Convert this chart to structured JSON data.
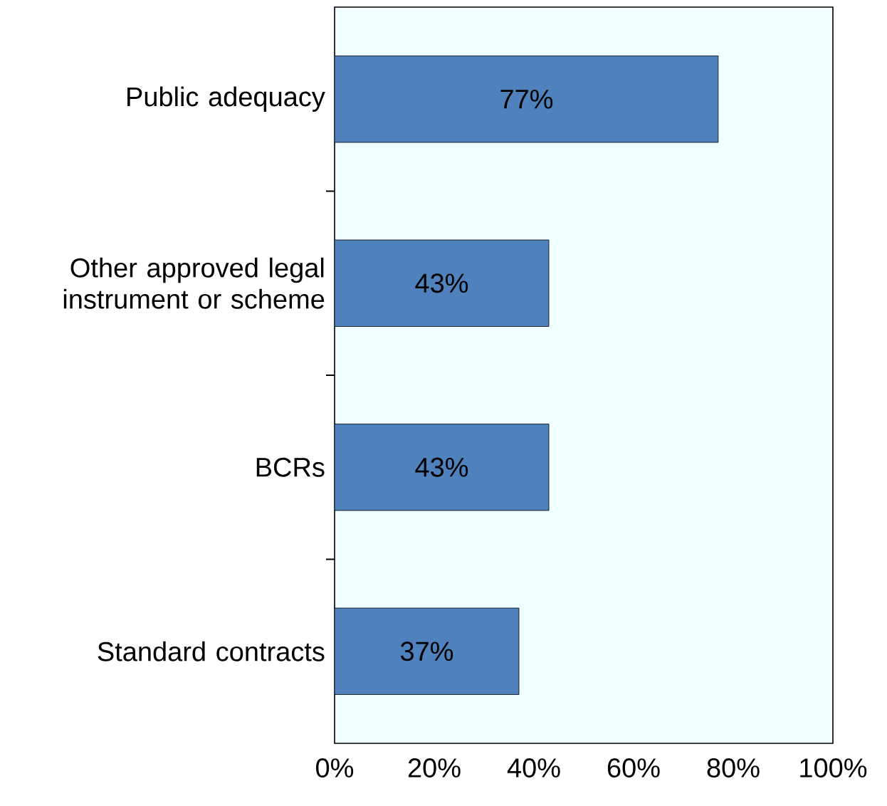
{
  "chart_data": {
    "type": "bar",
    "orientation": "horizontal",
    "categories": [
      "Public adequacy",
      "Other approved legal instrument or scheme",
      "BCRs",
      "Standard contracts"
    ],
    "values": [
      77,
      43,
      43,
      37
    ],
    "value_labels": [
      "77%",
      "43%",
      "43%",
      "37%"
    ],
    "color": "#4f81bd",
    "xlim": [
      0,
      100
    ],
    "xticks": [
      {
        "value": 0,
        "label": "0%"
      },
      {
        "value": 20,
        "label": "20%"
      },
      {
        "value": 40,
        "label": "40%"
      },
      {
        "value": 60,
        "label": "60%"
      },
      {
        "value": 80,
        "label": "80%"
      },
      {
        "value": 100,
        "label": "100%"
      }
    ],
    "grid": false
  }
}
